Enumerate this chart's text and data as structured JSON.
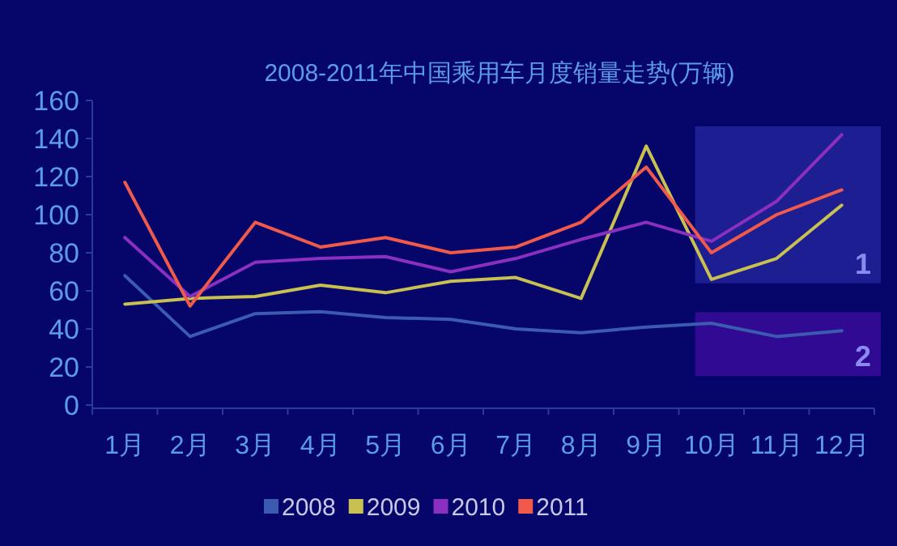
{
  "chart_data": {
    "type": "line",
    "title": "2008-2011年中国乘用车月度销量走势(万辆)",
    "categories": [
      "1月",
      "2月",
      "3月",
      "4月",
      "5月",
      "6月",
      "7月",
      "8月",
      "9月",
      "10月",
      "11月",
      "12月"
    ],
    "series": [
      {
        "name": "2008",
        "color": "#3b5bb0",
        "values": [
          68,
          36,
          48,
          49,
          46,
          45,
          40,
          38,
          41,
          43,
          36,
          39
        ]
      },
      {
        "name": "2009",
        "color": "#c8c050",
        "values": [
          53,
          56,
          57,
          63,
          59,
          65,
          67,
          56,
          136,
          66,
          77,
          105
        ]
      },
      {
        "name": "2010",
        "color": "#8a2fc0",
        "values": [
          88,
          57,
          75,
          77,
          78,
          70,
          77,
          87,
          96,
          86,
          107,
          142
        ]
      },
      {
        "name": "2011",
        "color": "#f05a4a",
        "values": [
          117,
          52,
          96,
          83,
          88,
          80,
          83,
          96,
          125,
          80,
          100,
          113
        ]
      }
    ],
    "ylim": [
      0,
      160
    ],
    "yticks": [
      0,
      20,
      40,
      60,
      80,
      100,
      120,
      140,
      160
    ],
    "annotations": [
      "1",
      "2"
    ],
    "legend": "bottom",
    "grid": false,
    "marker": "none",
    "line_style": "solid"
  }
}
